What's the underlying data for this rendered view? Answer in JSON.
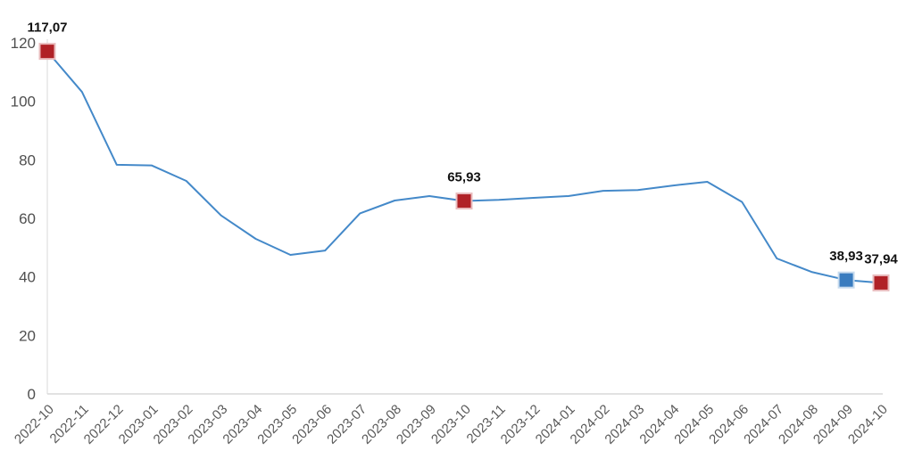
{
  "chart_data": {
    "type": "line",
    "title": "",
    "categories": [
      "2022-10",
      "2022-11",
      "2022-12",
      "2023-01",
      "2023-02",
      "2023-03",
      "2023-04",
      "2023-05",
      "2023-06",
      "2023-07",
      "2023-08",
      "2023-09",
      "2023-10",
      "2023-11",
      "2023-12",
      "2024-01",
      "2024-02",
      "2024-03",
      "2024-04",
      "2024-05",
      "2024-06",
      "2024-07",
      "2024-08",
      "2024-09",
      "2024-10"
    ],
    "values": [
      117.07,
      103.2,
      78.3,
      78.1,
      72.8,
      61.0,
      53.0,
      47.5,
      49.0,
      61.7,
      66.1,
      67.6,
      65.93,
      66.3,
      67.0,
      67.6,
      69.4,
      69.7,
      71.2,
      72.5,
      65.6,
      46.3,
      41.7,
      38.93,
      37.94
    ],
    "ylim": [
      0,
      120
    ],
    "yticks": [
      0,
      20,
      40,
      60,
      80,
      100,
      120
    ],
    "grid": false,
    "legend": "none",
    "line_color": "#4489c9",
    "axis_color": "#d9d9d9",
    "ytick_color": "#4f4f4f",
    "xtick_color": "#595959",
    "data_label_color": "#111111",
    "highlighted_points": [
      {
        "category": "2022-10",
        "value": 117.07,
        "label": "117,07",
        "marker_color": "#b02126",
        "marker_border": "#e9bcbe"
      },
      {
        "category": "2023-10",
        "value": 65.93,
        "label": "65,93",
        "marker_color": "#b02126",
        "marker_border": "#e9bcbe"
      },
      {
        "category": "2024-09",
        "value": 38.93,
        "label": "38,93",
        "marker_color": "#3a7cbf",
        "marker_border": "#c7dbee"
      },
      {
        "category": "2024-10",
        "value": 37.94,
        "label": "37,94",
        "marker_color": "#b02126",
        "marker_border": "#e9bcbe"
      }
    ]
  }
}
